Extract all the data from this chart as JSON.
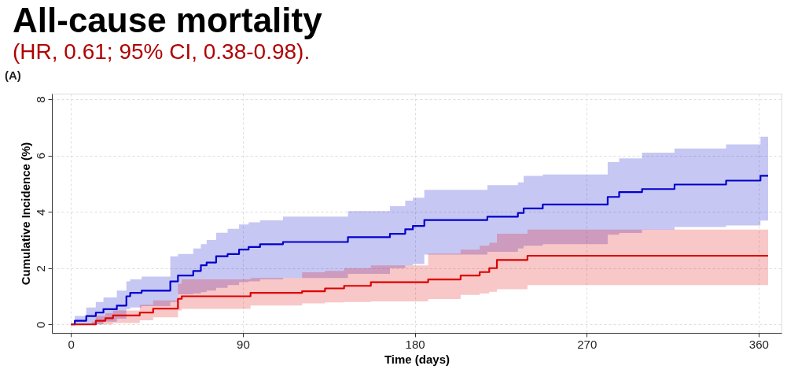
{
  "chart_data": {
    "type": "step",
    "title": "All-cause mortality",
    "subtitle": "(HR, 0.61; 95% CI, 0.38-0.98).",
    "xlabel": "Time (days)",
    "ylabel": "Cumulative Incidence (%)",
    "annotations": [
      "(A)"
    ],
    "xlim": [
      -10,
      372
    ],
    "xticks": [
      0,
      90,
      180,
      270,
      360
    ],
    "ylim": [
      -0.3,
      8.2
    ],
    "yticks": [
      0,
      2,
      4,
      6,
      8
    ],
    "grid": true,
    "line_style": "solid",
    "marker": "none",
    "series": [
      {
        "color": "#0000cc",
        "x": [
          0,
          2,
          8,
          13,
          17,
          24,
          29,
          31,
          37,
          52,
          56,
          64,
          68,
          71,
          76,
          82,
          88,
          93,
          99,
          111,
          145,
          167,
          175,
          179,
          185,
          218,
          234,
          237,
          247,
          281,
          287,
          299,
          316,
          343,
          361,
          365
        ],
        "values": [
          0,
          0.13,
          0.3,
          0.42,
          0.54,
          0.67,
          1.0,
          1.12,
          1.2,
          1.53,
          1.74,
          1.9,
          2.1,
          2.2,
          2.42,
          2.5,
          2.66,
          2.75,
          2.85,
          2.93,
          3.1,
          3.22,
          3.38,
          3.5,
          3.71,
          3.83,
          3.96,
          4.12,
          4.26,
          4.53,
          4.7,
          4.81,
          4.97,
          5.11,
          5.28,
          5.28
        ],
        "lower": [
          0,
          0,
          0,
          0,
          0.1,
          0.2,
          0.54,
          0.6,
          0.65,
          0.8,
          1.07,
          1.1,
          1.15,
          1.2,
          1.3,
          1.4,
          1.5,
          1.53,
          1.6,
          1.65,
          1.8,
          2.0,
          2.1,
          2.15,
          2.48,
          2.58,
          2.7,
          2.8,
          2.85,
          3.19,
          3.25,
          3.36,
          3.46,
          3.52,
          3.69,
          3.69
        ],
        "upper": [
          0,
          0.3,
          0.6,
          0.8,
          0.96,
          1.2,
          1.53,
          1.6,
          1.7,
          2.42,
          2.5,
          2.7,
          2.85,
          3.0,
          3.26,
          3.4,
          3.55,
          3.63,
          3.7,
          3.83,
          4.03,
          4.2,
          4.4,
          4.5,
          4.78,
          4.95,
          5.05,
          5.28,
          5.33,
          5.77,
          5.9,
          6.1,
          6.25,
          6.4,
          6.67,
          6.67
        ]
      },
      {
        "color": "#dd0000",
        "x": [
          0,
          11,
          13,
          18,
          22,
          36,
          43,
          56,
          58,
          94,
          121,
          133,
          143,
          157,
          187,
          204,
          214,
          219,
          223,
          239,
          365
        ],
        "values": [
          0,
          0,
          0.13,
          0.22,
          0.32,
          0.42,
          0.56,
          0.91,
          1.0,
          1.12,
          1.18,
          1.28,
          1.37,
          1.5,
          1.6,
          1.74,
          1.86,
          2.0,
          2.29,
          2.44,
          2.44
        ],
        "lower": [
          0,
          0,
          0,
          0,
          0.05,
          0.15,
          0.25,
          0.5,
          0.55,
          0.67,
          0.75,
          0.78,
          0.8,
          0.82,
          0.9,
          1.05,
          1.1,
          1.16,
          1.25,
          1.4,
          1.45
        ],
        "upper": [
          0,
          0.1,
          0.3,
          0.4,
          0.5,
          0.7,
          0.85,
          1.45,
          1.6,
          1.65,
          1.85,
          1.9,
          2.0,
          2.1,
          2.52,
          2.66,
          2.8,
          2.9,
          3.22,
          3.37,
          3.37
        ]
      }
    ]
  }
}
